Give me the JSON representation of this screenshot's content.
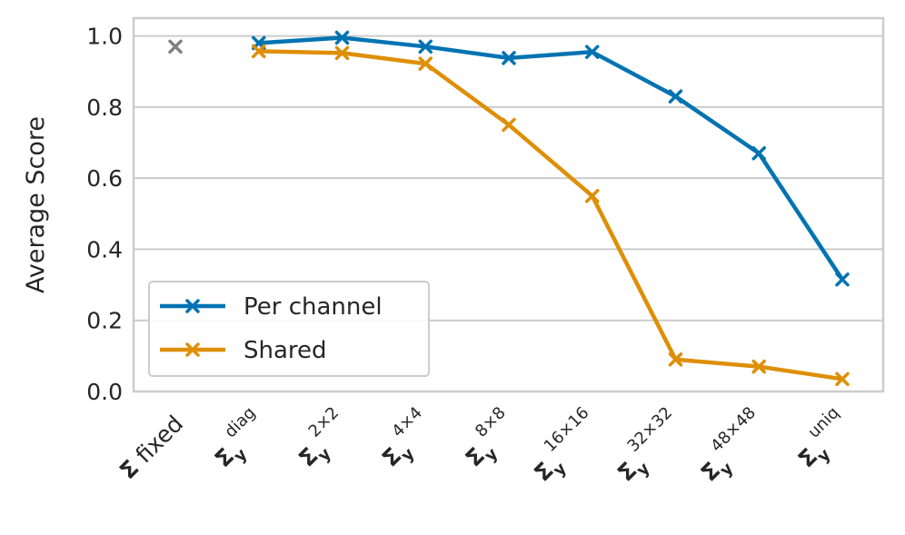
{
  "chart_data": {
    "type": "line",
    "title": "",
    "xlabel": "",
    "ylabel": "Average Score",
    "ylim": [
      0,
      1.05
    ],
    "yticks": [
      "0.0",
      "0.2",
      "0.4",
      "0.6",
      "0.8",
      "1.0"
    ],
    "grid": true,
    "legend_placement": "lower-left",
    "categories": [
      {
        "main": "Σ",
        "rest": " fixed",
        "sub": "",
        "sup": ""
      },
      {
        "main": "Σ",
        "rest": "",
        "sub": "y",
        "sup": "diag"
      },
      {
        "main": "Σ",
        "rest": "",
        "sub": "y",
        "sup": "2×2"
      },
      {
        "main": "Σ",
        "rest": "",
        "sub": "y",
        "sup": "4×4"
      },
      {
        "main": "Σ",
        "rest": "",
        "sub": "y",
        "sup": "8×8"
      },
      {
        "main": "Σ",
        "rest": "",
        "sub": "y",
        "sup": "16×16"
      },
      {
        "main": "Σ",
        "rest": "",
        "sub": "y",
        "sup": "32×32"
      },
      {
        "main": "Σ",
        "rest": "",
        "sub": "y",
        "sup": "48×48"
      },
      {
        "main": "Σ",
        "rest": "",
        "sub": "y",
        "sup": "uniq"
      }
    ],
    "reference_point": {
      "category_index": 0,
      "value": 0.97,
      "color": "#808080"
    },
    "series": [
      {
        "name": "Per channel",
        "color": "#0173b2",
        "values": [
          null,
          0.98,
          0.995,
          0.97,
          0.938,
          0.955,
          0.83,
          0.67,
          0.315
        ]
      },
      {
        "name": "Shared",
        "color": "#de8f05",
        "values": [
          null,
          0.957,
          0.952,
          0.922,
          0.75,
          0.55,
          0.09,
          0.07,
          0.035
        ]
      }
    ]
  }
}
